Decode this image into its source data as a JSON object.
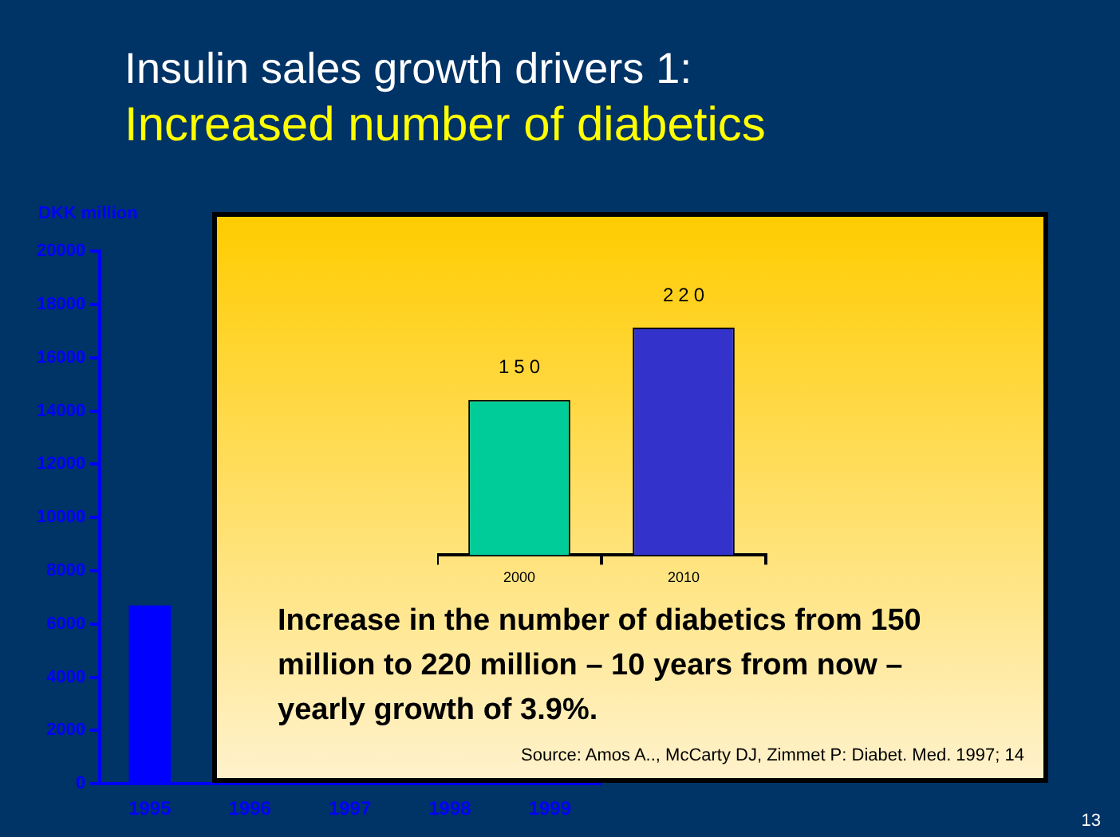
{
  "chart_data": [
    {
      "type": "bar",
      "title": "Insulin sales growth drivers 1:",
      "subtitle": "Increased number of diabetics",
      "ylabel": "DKK million",
      "categories": [
        "1995",
        "1996",
        "1997",
        "1998",
        "1999"
      ],
      "values": [
        6700,
        null,
        null,
        null,
        null
      ],
      "color": "#0000ff",
      "ylim": [
        0,
        20000
      ],
      "yticks": [
        0,
        2000,
        4000,
        6000,
        8000,
        10000,
        12000,
        14000,
        16000,
        18000,
        20000
      ],
      "annotations": [
        "13"
      ]
    },
    {
      "type": "bar",
      "categories": [
        "2000",
        "2010"
      ],
      "values": [
        150,
        220
      ],
      "colors": [
        "#00cc99",
        "#3333cc"
      ],
      "data_labels": true,
      "tick_labels": "x",
      "annotations": [
        "Increase in the number of diabetics from 150 million to 220 million – 10 years from now –  yearly growth of 3.9%.",
        "Source: Amos A.., McCarty DJ, Zimmet P: Diabet. Med. 1997; 14"
      ]
    }
  ]
}
